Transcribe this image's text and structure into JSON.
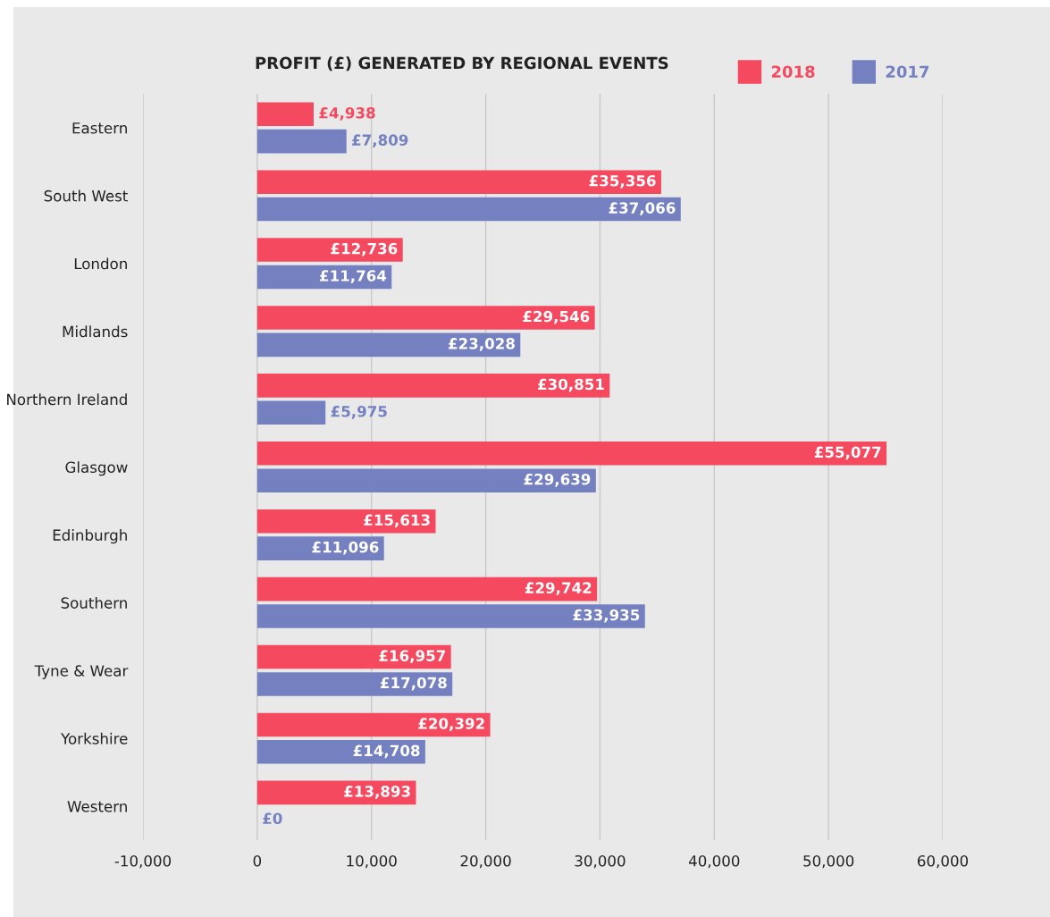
{
  "chart_data": {
    "type": "bar",
    "orientation": "horizontal",
    "title": "PROFIT (£) GENERATED BY REGIONAL EVENTS",
    "categories": [
      "Eastern",
      "South West",
      "London",
      "Midlands",
      "Northern Ireland",
      "Glasgow",
      "Edinburgh",
      "Southern",
      "Tyne & Wear",
      "Yorkshire",
      "Western"
    ],
    "series": [
      {
        "name": "2018",
        "color": "#f4495f",
        "values": [
          4938,
          35356,
          12736,
          29546,
          30851,
          55077,
          15613,
          29742,
          16957,
          20392,
          13893
        ],
        "value_labels": [
          "£4,938",
          "£35,356",
          "£12,736",
          "£29,546",
          "£30,851",
          "£55,077",
          "£15,613",
          "£29,742",
          "£16,957",
          "£20,392",
          "£13,893"
        ]
      },
      {
        "name": "2017",
        "color": "#7580c0",
        "values": [
          7809,
          37066,
          11764,
          23028,
          5975,
          29639,
          11096,
          33935,
          17078,
          14708,
          0
        ],
        "value_labels": [
          "£7,809",
          "£37,066",
          "£11,764",
          "£23,028",
          "£5,975",
          "£29,639",
          "£11,096",
          "£33,935",
          "£17,078",
          "£14,708",
          "£0"
        ]
      }
    ],
    "xlim": [
      -10000,
      60000
    ],
    "xticks": [
      {
        "value": -10000,
        "label": "-10,000"
      },
      0,
      {
        "value": 10000,
        "label": "10,000"
      },
      {
        "value": 20000,
        "label": "20,000"
      },
      {
        "value": 30000,
        "label": "30,000"
      },
      {
        "value": 40000,
        "label": "40,000"
      },
      {
        "value": 50000,
        "label": "50,000"
      },
      {
        "value": 60000,
        "label": "60,000"
      }
    ],
    "grid": "x",
    "legend": "top right"
  }
}
